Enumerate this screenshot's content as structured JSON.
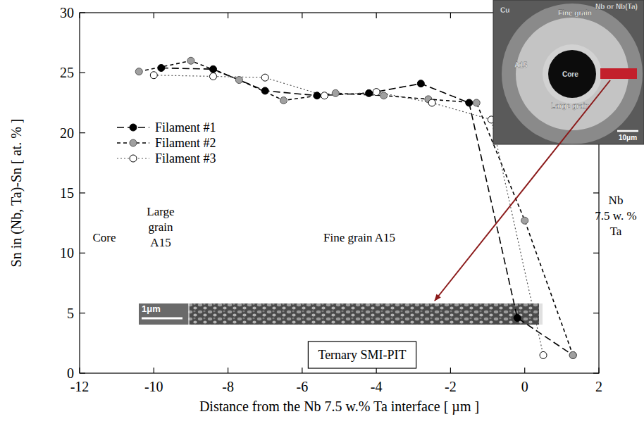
{
  "chart_data": {
    "type": "line",
    "x_label": "Distance from the Nb 7.5 w.% Ta interface [ µm ]",
    "y_label": "Sn in (Nb, Ta)-Sn [ at. % ]",
    "xlim": [
      -12,
      2
    ],
    "xticks": [
      -12,
      -10,
      -8,
      -6,
      -4,
      -2,
      0,
      2
    ],
    "ylim": [
      0,
      30
    ],
    "yticks": [
      0,
      5,
      10,
      15,
      20,
      25,
      30
    ],
    "grid": false,
    "legend": "upper left",
    "series": [
      {
        "name": "Filament #1",
        "color": "#000000",
        "marker": "filled-circle",
        "line_style": "long-dash",
        "x": [
          -9.8,
          -8.4,
          -7.0,
          -5.6,
          -4.2,
          -2.8,
          -1.5,
          -0.2,
          1.3
        ],
        "values": [
          25.4,
          25.3,
          23.5,
          23.1,
          23.3,
          24.1,
          22.5,
          4.6,
          1.5
        ]
      },
      {
        "name": "Filament #2",
        "color": "#a0a0a0",
        "marker": "filled-circle",
        "line_style": "short-dash",
        "x": [
          -10.4,
          -9.0,
          -7.7,
          -6.5,
          -5.1,
          -3.8,
          -2.6,
          -1.3,
          0.0,
          1.3
        ],
        "values": [
          25.1,
          26.0,
          24.4,
          22.7,
          23.3,
          23.1,
          22.8,
          22.5,
          12.7,
          1.5
        ]
      },
      {
        "name": "Filament #3",
        "color": "#ffffff",
        "marker": "open-circle",
        "line_style": "dotted",
        "x": [
          -10.0,
          -8.4,
          -7.0,
          -5.4,
          -4.0,
          -2.5,
          -0.9,
          0.5
        ],
        "values": [
          24.8,
          24.7,
          24.6,
          23.1,
          23.4,
          22.5,
          21.1,
          1.5
        ]
      }
    ],
    "annotations": [
      {
        "lines": [
          "Core"
        ]
      },
      {
        "lines": [
          "Large",
          "grain",
          "A15"
        ]
      },
      {
        "lines": [
          "Fine grain A15"
        ]
      },
      {
        "lines": [
          "Nb",
          "7.5 w. %",
          "Ta"
        ]
      },
      {
        "lines": [
          "Ternary SMI-PIT"
        ]
      }
    ]
  },
  "inset": {
    "labels": [
      "Cu",
      "Nb or Nb(Ta)",
      "Fine grain",
      "A15",
      "Core",
      "Large grain"
    ],
    "scale_bar": "10μm"
  },
  "micrograph": {
    "scale_bar": "1μm"
  }
}
